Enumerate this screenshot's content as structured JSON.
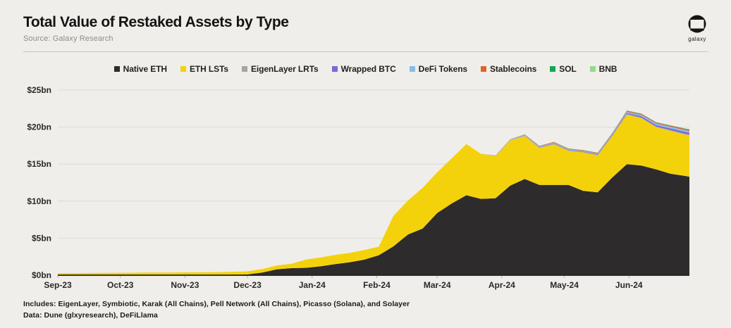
{
  "header": {
    "title": "Total Value of Restaked Assets by Type",
    "source": "Source: Galaxy Research",
    "logo_text": "galaxy"
  },
  "legend": [
    {
      "label": "Native ETH",
      "color": "#2e2b2c"
    },
    {
      "label": "ETH LSTs",
      "color": "#f4d20b"
    },
    {
      "label": "EigenLayer LRTs",
      "color": "#a7a5a2"
    },
    {
      "label": "Wrapped BTC",
      "color": "#7b68d8"
    },
    {
      "label": "DeFi Tokens",
      "color": "#8abbe8"
    },
    {
      "label": "Stablecoins",
      "color": "#e0622a"
    },
    {
      "label": "SOL",
      "color": "#12a854"
    },
    {
      "label": "BNB",
      "color": "#95d98d"
    }
  ],
  "footer": {
    "line1": "Includes: EigenLayer, Symbiotic, Karak (All Chains), Pell Network (All Chains), Picasso (Solana), and Solayer",
    "line2": "Data: Dune (glxyresearch), DeFiLlama"
  },
  "chart_data": {
    "type": "area",
    "stacked": true,
    "title": "Total Value of Restaked Assets by Type",
    "units": "USD billions",
    "grid": "horizontal",
    "legend_position": "top",
    "ylim": [
      0,
      25
    ],
    "x_range": [
      "2023-09-01",
      "2024-06-30"
    ],
    "y_ticks": [
      {
        "value": 25,
        "label": "$25bn"
      },
      {
        "value": 20,
        "label": "$20bn"
      },
      {
        "value": 15,
        "label": "$15bn"
      },
      {
        "value": 10,
        "label": "$10bn"
      },
      {
        "value": 5,
        "label": "$5bn"
      },
      {
        "value": 0,
        "label": "$0bn"
      }
    ],
    "x_ticks": [
      {
        "date": "2023-09-01",
        "label": "Sep-23"
      },
      {
        "date": "2023-10-01",
        "label": "Oct-23"
      },
      {
        "date": "2023-11-01",
        "label": "Nov-23"
      },
      {
        "date": "2023-12-01",
        "label": "Dec-23"
      },
      {
        "date": "2024-01-01",
        "label": "Jan-24"
      },
      {
        "date": "2024-02-01",
        "label": "Feb-24"
      },
      {
        "date": "2024-03-01",
        "label": "Mar-24"
      },
      {
        "date": "2024-04-01",
        "label": "Apr-24"
      },
      {
        "date": "2024-05-01",
        "label": "May-24"
      },
      {
        "date": "2024-06-01",
        "label": "Jun-24"
      }
    ],
    "dates": [
      "2023-09-01",
      "2023-09-08",
      "2023-09-15",
      "2023-09-22",
      "2023-09-29",
      "2023-10-06",
      "2023-10-13",
      "2023-10-20",
      "2023-10-27",
      "2023-11-03",
      "2023-11-10",
      "2023-11-17",
      "2023-11-24",
      "2023-12-01",
      "2023-12-08",
      "2023-12-15",
      "2023-12-22",
      "2023-12-29",
      "2024-01-05",
      "2024-01-12",
      "2024-01-19",
      "2024-01-26",
      "2024-02-02",
      "2024-02-09",
      "2024-02-16",
      "2024-02-23",
      "2024-03-01",
      "2024-03-08",
      "2024-03-15",
      "2024-03-22",
      "2024-03-29",
      "2024-04-05",
      "2024-04-12",
      "2024-04-19",
      "2024-04-26",
      "2024-05-03",
      "2024-05-10",
      "2024-05-17",
      "2024-05-24",
      "2024-05-31",
      "2024-06-07",
      "2024-06-14",
      "2024-06-21",
      "2024-06-28",
      "2024-06-30"
    ],
    "series": [
      {
        "name": "Native ETH",
        "color": "#2e2b2c",
        "values": [
          0.02,
          0.02,
          0.02,
          0.03,
          0.03,
          0.03,
          0.04,
          0.04,
          0.04,
          0.05,
          0.05,
          0.05,
          0.08,
          0.1,
          0.35,
          0.8,
          0.95,
          1.0,
          1.2,
          1.5,
          1.75,
          2.1,
          2.7,
          3.9,
          5.5,
          6.3,
          8.4,
          9.7,
          10.8,
          10.3,
          10.4,
          12.1,
          13.0,
          12.2,
          12.2,
          12.2,
          11.4,
          11.2,
          13.2,
          15.0,
          14.8,
          14.3,
          13.7,
          13.4,
          13.3
        ]
      },
      {
        "name": "ETH LSTs",
        "color": "#f4d20b",
        "values": [
          0.25,
          0.26,
          0.27,
          0.28,
          0.29,
          0.3,
          0.31,
          0.32,
          0.33,
          0.34,
          0.35,
          0.37,
          0.39,
          0.42,
          0.47,
          0.5,
          0.6,
          1.1,
          1.2,
          1.25,
          1.25,
          1.3,
          1.15,
          4.1,
          4.6,
          5.5,
          5.5,
          6.1,
          6.9,
          6.1,
          5.7,
          6.1,
          5.8,
          5.0,
          5.5,
          4.6,
          5.2,
          5.0,
          5.6,
          6.7,
          6.4,
          5.7,
          5.8,
          5.6,
          5.6
        ]
      },
      {
        "name": "EigenLayer LRTs",
        "color": "#a7a5a2",
        "values": [
          0,
          0,
          0,
          0,
          0,
          0,
          0,
          0,
          0,
          0,
          0,
          0,
          0,
          0,
          0,
          0,
          0,
          0,
          0,
          0,
          0,
          0,
          0,
          0,
          0,
          0,
          0,
          0,
          0,
          0,
          0,
          0.01,
          0.02,
          0.03,
          0.03,
          0.03,
          0.03,
          0.04,
          0.05,
          0.07,
          0.08,
          0.08,
          0.09,
          0.1,
          0.1
        ]
      },
      {
        "name": "Wrapped BTC",
        "color": "#7b68d8",
        "values": [
          0,
          0,
          0,
          0,
          0,
          0,
          0,
          0,
          0,
          0,
          0,
          0,
          0,
          0,
          0,
          0,
          0,
          0,
          0,
          0,
          0,
          0,
          0,
          0,
          0,
          0,
          0,
          0,
          0,
          0,
          0,
          0.02,
          0.04,
          0.05,
          0.06,
          0.06,
          0.06,
          0.07,
          0.09,
          0.13,
          0.17,
          0.2,
          0.23,
          0.25,
          0.26
        ]
      },
      {
        "name": "DeFi Tokens",
        "color": "#8abbe8",
        "values": [
          0,
          0,
          0,
          0,
          0,
          0,
          0,
          0,
          0,
          0,
          0,
          0,
          0,
          0,
          0,
          0,
          0,
          0,
          0,
          0,
          0,
          0,
          0,
          0,
          0,
          0,
          0,
          0,
          0,
          0,
          0.06,
          0.08,
          0.1,
          0.12,
          0.13,
          0.13,
          0.12,
          0.13,
          0.15,
          0.19,
          0.21,
          0.22,
          0.24,
          0.25,
          0.25
        ]
      },
      {
        "name": "Stablecoins",
        "color": "#e0622a",
        "values": [
          0,
          0,
          0,
          0,
          0,
          0,
          0,
          0,
          0,
          0,
          0,
          0,
          0,
          0,
          0,
          0,
          0,
          0,
          0,
          0,
          0,
          0,
          0,
          0,
          0,
          0,
          0,
          0,
          0,
          0,
          0.03,
          0.04,
          0.05,
          0.06,
          0.07,
          0.07,
          0.07,
          0.08,
          0.09,
          0.11,
          0.12,
          0.12,
          0.13,
          0.14,
          0.15
        ]
      },
      {
        "name": "SOL",
        "color": "#12a854",
        "values": [
          0,
          0,
          0,
          0,
          0,
          0,
          0,
          0,
          0,
          0,
          0,
          0,
          0,
          0,
          0,
          0,
          0,
          0,
          0,
          0,
          0,
          0,
          0,
          0,
          0,
          0,
          0,
          0,
          0,
          0,
          0,
          0,
          0.01,
          0.01,
          0.01,
          0.02,
          0.02,
          0.02,
          0.02,
          0.03,
          0.03,
          0.04,
          0.04,
          0.05,
          0.05
        ]
      },
      {
        "name": "BNB",
        "color": "#95d98d",
        "values": [
          0,
          0,
          0,
          0,
          0,
          0,
          0,
          0,
          0,
          0,
          0,
          0,
          0,
          0,
          0,
          0,
          0,
          0,
          0,
          0,
          0,
          0,
          0,
          0,
          0,
          0,
          0,
          0,
          0,
          0,
          0,
          0,
          0,
          0,
          0.01,
          0.01,
          0.01,
          0.01,
          0.01,
          0.02,
          0.02,
          0.02,
          0.02,
          0.02,
          0.02
        ]
      }
    ]
  }
}
